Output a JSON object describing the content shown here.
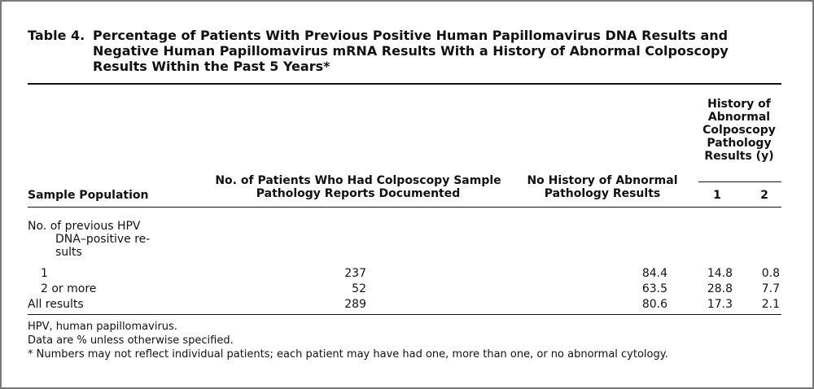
{
  "table": {
    "label": "Table 4.",
    "title": "Percentage of Patients With Previous Positive Human Papillomavirus DNA Results and Negative Human Papillomavirus mRNA Results With a History of Abnormal Colposcopy Results Within the Past 5 Years*",
    "headers": {
      "sample_population": "Sample Population",
      "num_patients_l1": "No. of Patients Who Had Colposcopy Sample",
      "num_patients_l2": "Pathology Reports Documented",
      "no_history_l1": "No History of Abnormal",
      "no_history_l2": "Pathology Results",
      "history_group": [
        "History of",
        "Abnormal",
        "Colposcopy",
        "Pathology",
        "Results (y)"
      ],
      "year_1": "1",
      "year_2": "2"
    },
    "group_label": [
      "No. of previous HPV",
      "DNA–positive re-",
      "sults"
    ],
    "rows": [
      {
        "population": "1",
        "patients": "237",
        "no_history": "84.4",
        "y1": "14.8",
        "y2": "0.8"
      },
      {
        "population": "2 or more",
        "patients": "52",
        "no_history": "63.5",
        "y1": "28.8",
        "y2": "7.7"
      },
      {
        "population": "All results",
        "patients": "289",
        "no_history": "80.6",
        "y1": "17.3",
        "y2": "2.1"
      }
    ],
    "footnotes": [
      "HPV, human papillomavirus.",
      "Data are % unless otherwise specified.",
      "* Numbers may not reflect individual patients; each patient may have had one, more than one, or no abnormal cytology."
    ]
  }
}
